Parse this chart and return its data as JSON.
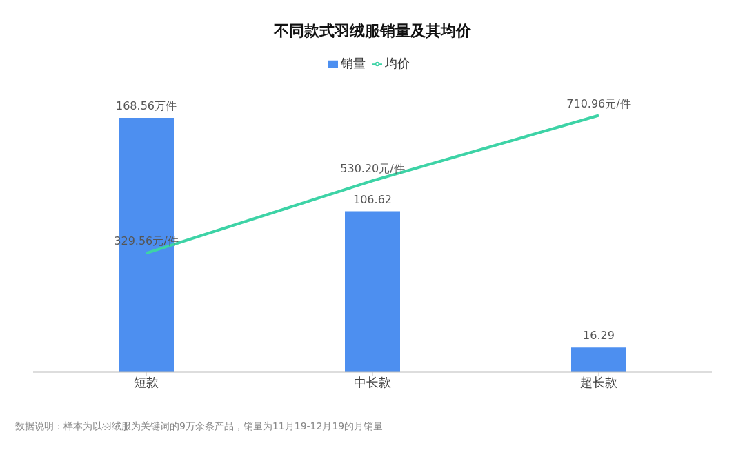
{
  "chart_data": {
    "type": "bar",
    "title": "不同款式羽绒服销量及其均价",
    "categories": [
      "短款",
      "中长款",
      "超长款"
    ],
    "series": [
      {
        "name": "销量",
        "color": "#4d8ff0",
        "values": [
          168.56,
          106.62,
          16.29
        ],
        "value_labels": [
          "168.56万件",
          "106.62",
          "16.29"
        ]
      },
      {
        "name": "均价",
        "type": "line",
        "axis": "y2",
        "color": "#3dd3a6",
        "values": [
          329.56,
          530.2,
          710.96
        ],
        "value_labels": [
          "329.56元/件",
          "530.20元/件",
          "710.96元/件"
        ]
      }
    ],
    "tick_labels": "x",
    "grid": false,
    "legend": "top",
    "marker": "none",
    "annotations": [
      "数据说明：样本为以羽绒服为关键词的9万余条产品，销量为11月19-12月19的月销量"
    ]
  }
}
